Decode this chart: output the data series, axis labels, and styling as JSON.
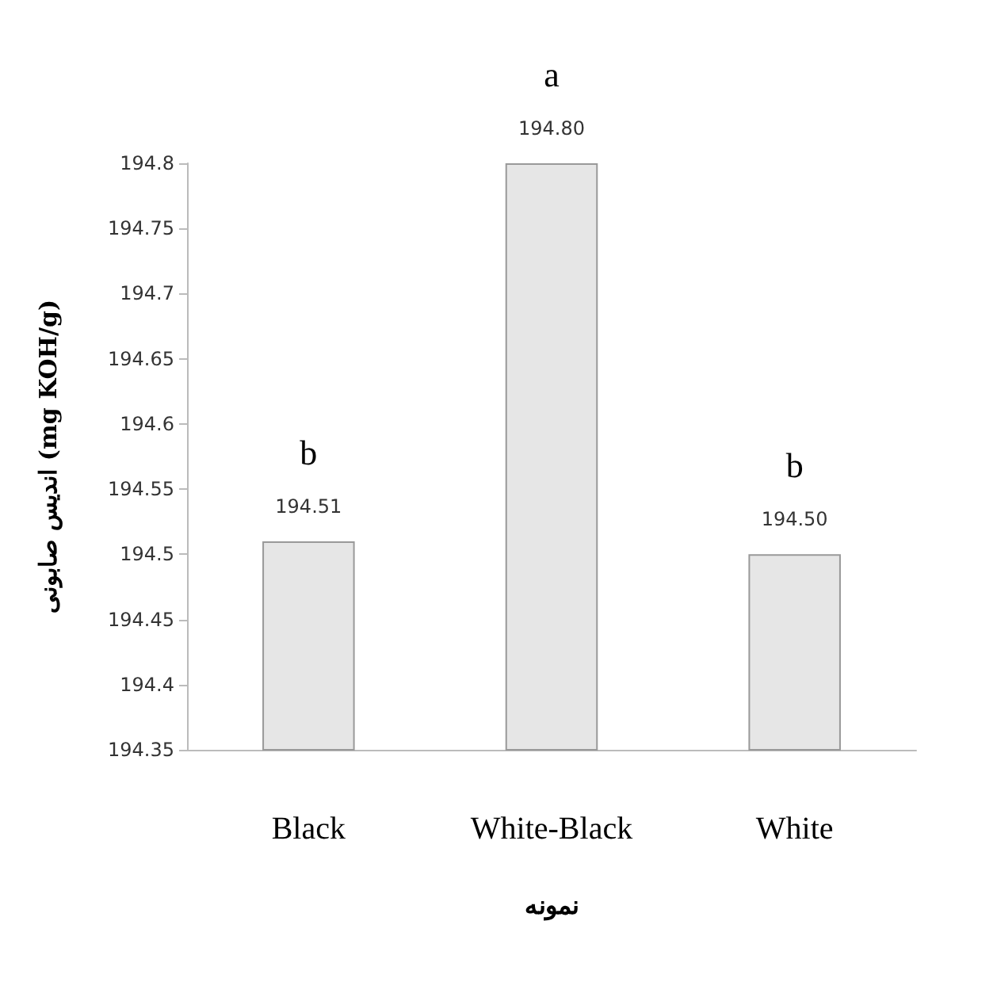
{
  "chart_data": {
    "type": "bar",
    "xlabel": "نمونه",
    "ylabel": "اندیس صابونی (mg KOH/g)",
    "categories": [
      "Black",
      "White-Black",
      "White"
    ],
    "values": [
      194.51,
      194.8,
      194.5
    ],
    "value_labels": [
      "194.51",
      "194.80",
      "194.50"
    ],
    "color": "#e6e6e6",
    "ylim": [
      194.35,
      194.8
    ],
    "yticks": [
      194.35,
      194.4,
      194.45,
      194.5,
      194.55,
      194.6,
      194.65,
      194.7,
      194.75,
      194.8
    ],
    "grid": false,
    "annotations": [
      {
        "text": "b",
        "x": "Black",
        "y": 194.51
      },
      {
        "text": "a",
        "x": "White-Black",
        "y": 194.8
      },
      {
        "text": "b",
        "x": "White",
        "y": 194.5
      }
    ]
  }
}
